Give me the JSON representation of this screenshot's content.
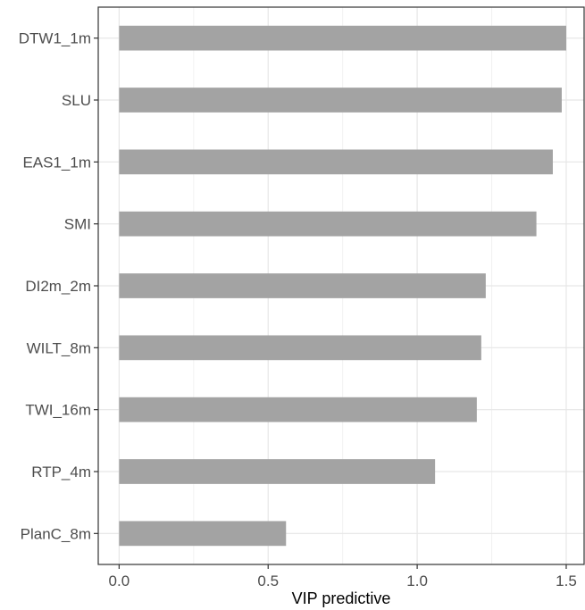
{
  "chart_data": {
    "type": "bar",
    "orientation": "horizontal",
    "title": "",
    "xlabel": "VIP predictive",
    "ylabel": "",
    "categories": [
      "DTW1_1m",
      "SLU",
      "EAS1_1m",
      "SMI",
      "DI2m_2m",
      "WILT_8m",
      "TWI_16m",
      "RTP_4m",
      "PlanC_8m"
    ],
    "values": [
      1.5,
      1.485,
      1.455,
      1.4,
      1.23,
      1.215,
      1.2,
      1.06,
      0.56
    ],
    "xlim": [
      -0.07,
      1.56
    ],
    "xticks": [
      0.0,
      0.5,
      1.0,
      1.5
    ],
    "xtick_labels": [
      "0.0",
      "0.5",
      "1.0",
      "1.5"
    ],
    "grid": true,
    "colors": {
      "bar": "#a3a3a3",
      "grid_major": "#e6e6e6",
      "grid_minor": "#f2f2f2",
      "panel_border": "#333333",
      "tick_text": "#4d4d4d",
      "axis_title": "#000000"
    }
  }
}
